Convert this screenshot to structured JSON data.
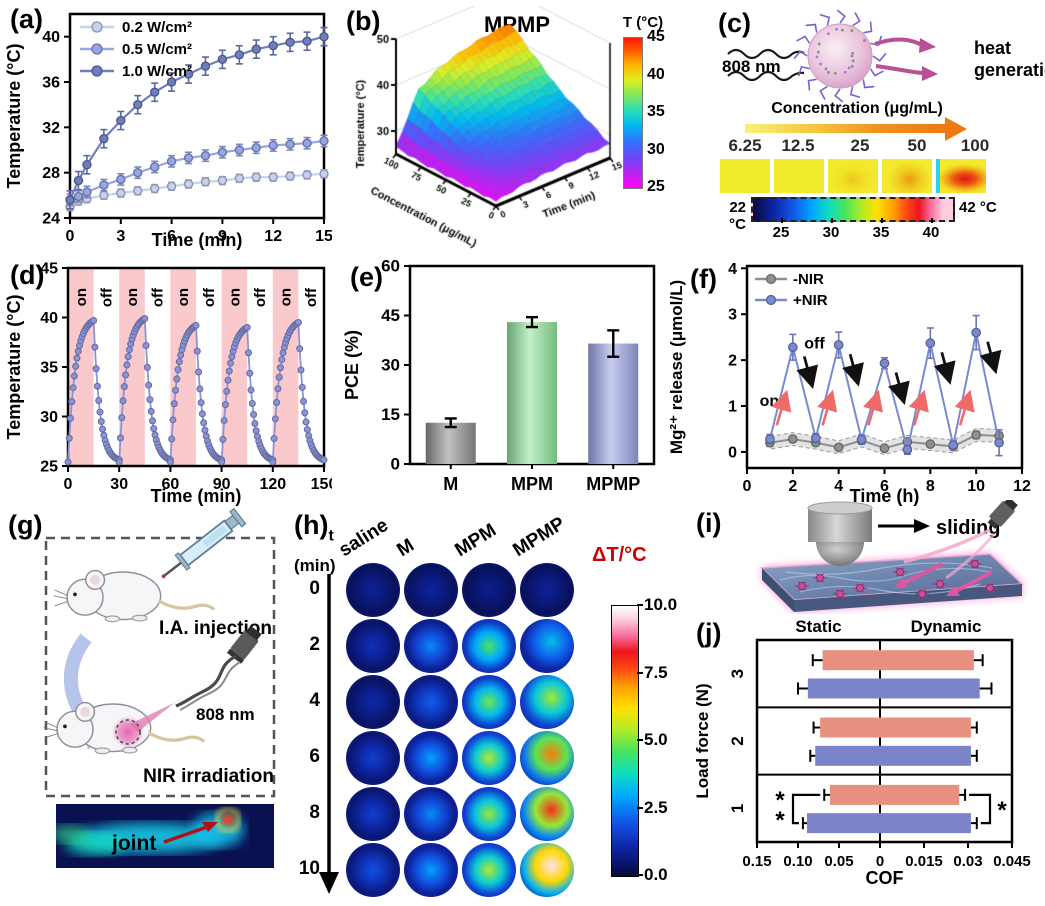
{
  "panels": {
    "c": {
      "label": "(c)",
      "laser_label": "808 nm",
      "heat_label_line1": "heat",
      "heat_label_line2": "generation",
      "conc_title": "Concentration (μg/mL)",
      "concentrations": [
        "6.25",
        "12.5",
        "25",
        "50",
        "100"
      ],
      "cbar_left": "22 °C",
      "cbar_right": "42 °C",
      "cbar_ticks": [
        "25",
        "30",
        "35",
        "40"
      ]
    },
    "g": {
      "label": "(g)",
      "step1": "I.A. injection",
      "laser": "808 nm",
      "step2": "NIR irradiation",
      "joint": "joint"
    },
    "i": {
      "label": "(i)",
      "sliding": "sliding"
    }
  },
  "chart_data": [
    {
      "id": "a",
      "panel_label": "(a)",
      "type": "line",
      "xlabel": "Time (min)",
      "ylabel": "Temperature (°C)",
      "xlim": [
        0,
        15
      ],
      "ylim": [
        24,
        42
      ],
      "xticks": [
        0,
        3,
        6,
        9,
        12,
        15
      ],
      "yticks": [
        24,
        28,
        32,
        36,
        40
      ],
      "legend_position": "top-left",
      "grid": false,
      "x": [
        0,
        0.5,
        1,
        2,
        3,
        4,
        5,
        6,
        7,
        8,
        9,
        10,
        11,
        12,
        13,
        14,
        15
      ],
      "series": [
        {
          "name": "0.2 W/cm²",
          "color": "#c7d0f1",
          "values": [
            25.0,
            25.5,
            25.7,
            26.0,
            26.2,
            26.4,
            26.6,
            26.8,
            27.0,
            27.2,
            27.3,
            27.5,
            27.6,
            27.6,
            27.7,
            27.8,
            27.9
          ],
          "err": 0.35
        },
        {
          "name": "0.5 W/cm²",
          "color": "#95a5e6",
          "values": [
            25.6,
            25.9,
            26.3,
            26.9,
            27.4,
            28.0,
            28.5,
            29.0,
            29.3,
            29.5,
            29.8,
            30.0,
            30.2,
            30.4,
            30.5,
            30.6,
            30.8
          ],
          "err": 0.5
        },
        {
          "name": "1.0 W/cm²",
          "color": "#6f7ec0",
          "values": [
            25.6,
            27.3,
            28.7,
            31.0,
            32.6,
            34.0,
            35.1,
            36.0,
            36.7,
            37.4,
            38.0,
            38.4,
            38.9,
            39.2,
            39.5,
            39.6,
            40.0
          ],
          "err": 0.8
        }
      ]
    },
    {
      "id": "b",
      "panel_label": "(b)",
      "type": "surface",
      "title": "MPMP",
      "xlabel": "Concentration (μg/mL)",
      "ylabel": "Time (min)",
      "zlabel": "Temperature (°C)",
      "zticks": [
        30,
        40,
        50
      ],
      "xticks": [
        100,
        75,
        50,
        25,
        0
      ],
      "yticks": [
        0,
        3,
        6,
        9,
        12,
        15
      ],
      "colorbar": {
        "title": "T (°C)",
        "ticks": [
          45,
          40,
          35,
          30,
          25
        ],
        "min": 25,
        "max": 45
      },
      "conc": [
        0,
        25,
        50,
        75,
        100
      ],
      "time": [
        0,
        3,
        6,
        9,
        12,
        15
      ],
      "z": [
        [
          26.0,
          27.0,
          27.5,
          27.8,
          28.0,
          28.0
        ],
        [
          26.0,
          29.0,
          30.0,
          30.5,
          31.0,
          31.0
        ],
        [
          26.0,
          31.0,
          32.5,
          33.5,
          34.0,
          34.0
        ],
        [
          26.0,
          34.0,
          36.0,
          37.5,
          38.0,
          38.5
        ],
        [
          26.5,
          37.0,
          40.0,
          41.5,
          42.5,
          43.0
        ]
      ]
    },
    {
      "id": "d",
      "panel_label": "(d)",
      "type": "line-cycles",
      "xlabel": "Time (min)",
      "ylabel": "Temperature (°C)",
      "xlim": [
        0,
        150
      ],
      "ylim": [
        25,
        45
      ],
      "xticks": [
        0,
        30,
        60,
        90,
        120,
        150
      ],
      "yticks": [
        25,
        30,
        35,
        40,
        45
      ],
      "on_label": "on",
      "off_label": "off",
      "on_color": "#f9c9cb",
      "on_regions": [
        [
          0,
          15
        ],
        [
          30,
          45
        ],
        [
          60,
          75
        ],
        [
          90,
          105
        ],
        [
          120,
          135
        ]
      ],
      "baseline": 25.4,
      "peaks": [
        39.7,
        39.9,
        39.2,
        39.0,
        39.5
      ],
      "tau_min": 4.2,
      "series_color": "#8a93d8"
    },
    {
      "id": "e",
      "panel_label": "(e)",
      "type": "bar",
      "ylabel": "PCE (%)",
      "ylim": [
        0,
        60
      ],
      "yticks": [
        0,
        15,
        30,
        45,
        60
      ],
      "categories": [
        "M",
        "MPM",
        "MPMP"
      ],
      "values": [
        12.5,
        43.0,
        36.5
      ],
      "errors": [
        1.3,
        1.5,
        4.0
      ],
      "colors": [
        "#8f8f8f",
        "#8fe49a",
        "#99a3e2"
      ]
    },
    {
      "id": "f",
      "panel_label": "(f)",
      "type": "line",
      "xlabel": "Time (h)",
      "ylabel": "Mg²⁺ release (μmol/L)",
      "xlim": [
        0,
        12
      ],
      "ylim": [
        -0.35,
        4.05
      ],
      "xticks": [
        0,
        2,
        4,
        6,
        8,
        10,
        12
      ],
      "yticks": [
        0,
        1,
        2,
        3,
        4
      ],
      "on_label": "on",
      "off_label": "off",
      "on_color": "#f06a6a",
      "off_color": "#111111",
      "x": [
        1,
        2,
        3,
        4,
        5,
        6,
        7,
        8,
        9,
        10,
        11
      ],
      "series": [
        {
          "name": "-NIR",
          "color": "#8f8f8f",
          "band": 0.14,
          "values": [
            0.2,
            0.28,
            0.2,
            0.1,
            0.25,
            0.08,
            0.22,
            0.17,
            0.12,
            0.37,
            0.35
          ],
          "errs": [
            0.08,
            0.06,
            0.06,
            0.05,
            0.06,
            0.05,
            0.06,
            0.05,
            0.05,
            0.08,
            0.08
          ]
        },
        {
          "name": "+NIR",
          "color": "#7b8ad0",
          "values": [
            0.28,
            2.28,
            0.3,
            2.33,
            0.27,
            1.93,
            0.05,
            2.37,
            0.15,
            2.6,
            0.2
          ],
          "errs": [
            0.1,
            0.28,
            0.1,
            0.28,
            0.1,
            0.12,
            0.1,
            0.33,
            0.1,
            0.37,
            0.28
          ]
        }
      ],
      "on_arrows_x": [
        1.3,
        3.3,
        5.3,
        7.3,
        9.3
      ],
      "off_peaks_x": [
        2,
        4,
        6,
        8,
        10
      ]
    },
    {
      "id": "h",
      "panel_label": "(h)",
      "type": "heatmap",
      "row_unit_top": "t",
      "row_unit": "(min)",
      "rows": [
        "0",
        "2",
        "4",
        "6",
        "8",
        "10"
      ],
      "columns": [
        "saline",
        "M",
        "MPM",
        "MPMP"
      ],
      "values": [
        [
          0.9,
          1.0,
          0.8,
          0.9
        ],
        [
          1.3,
          2.6,
          4.6,
          3.3
        ],
        [
          1.1,
          2.1,
          4.9,
          5.3
        ],
        [
          1.6,
          2.9,
          5.4,
          7.3
        ],
        [
          1.6,
          2.6,
          5.2,
          8.0
        ],
        [
          1.9,
          2.9,
          5.4,
          9.7
        ]
      ],
      "colorbar": {
        "title": "ΔT/°C",
        "ticks": [
          "10.0",
          "7.5",
          "5.0",
          "2.5",
          "0.0"
        ],
        "min": 0,
        "max": 10
      }
    },
    {
      "id": "j",
      "panel_label": "(j)",
      "type": "diverging-bar",
      "left_header": "Static",
      "right_header": "Dynamic",
      "ylabel": "Load force (N)",
      "xlabel": "COF",
      "groups": [
        "3",
        "2",
        "1"
      ],
      "left_max": 0.15,
      "right_max": 0.045,
      "left_ticks": [
        0.15,
        0.1,
        0.05,
        0
      ],
      "right_ticks": [
        0.015,
        0.03,
        0.045
      ],
      "left_tick_labels": [
        "0.15",
        "0.10",
        "0.05",
        "0"
      ],
      "right_tick_labels": [
        "0.015",
        "0.03",
        "0.045"
      ],
      "series": [
        {
          "name": "pink",
          "color": "#e8907f",
          "static": [
            0.07,
            0.073,
            0.061
          ],
          "static_err": [
            0.012,
            0.008,
            0.007
          ],
          "dynamic": [
            0.032,
            0.031,
            0.027
          ],
          "dynamic_err": [
            0.003,
            0.002,
            0.002
          ]
        },
        {
          "name": "blue",
          "color": "#7b84c8",
          "static": [
            0.088,
            0.079,
            0.089
          ],
          "static_err": [
            0.012,
            0.006,
            0.005
          ],
          "dynamic": [
            0.034,
            0.031,
            0.031
          ],
          "dynamic_err": [
            0.004,
            0.002,
            0.002
          ]
        }
      ],
      "sig_left": "**",
      "sig_right": "*"
    }
  ]
}
